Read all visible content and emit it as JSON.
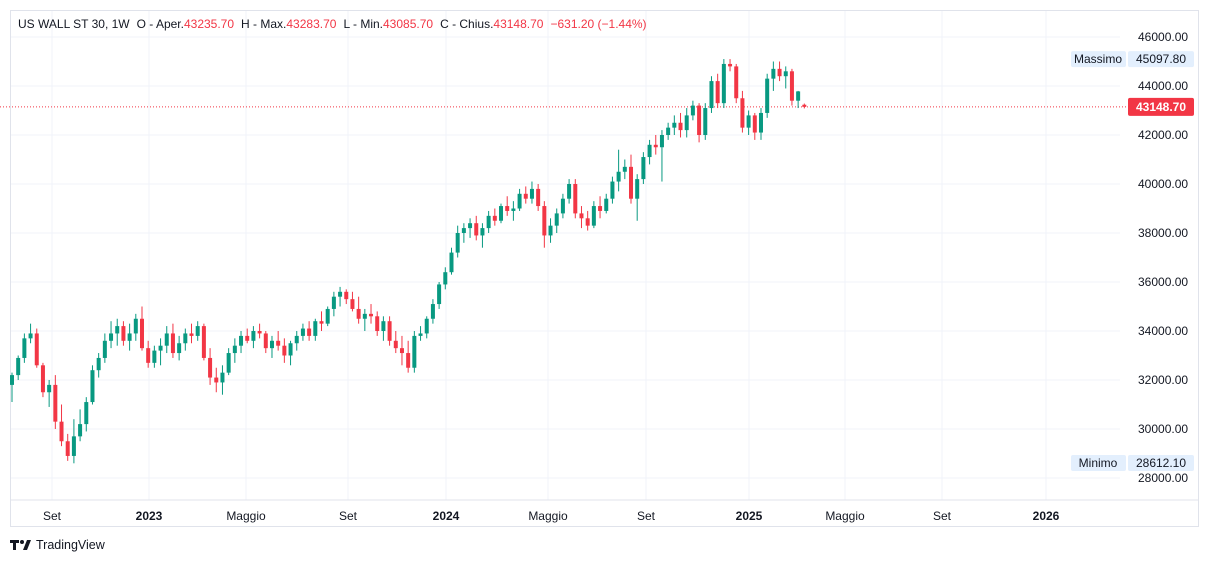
{
  "legend": {
    "symbol": "US WALL ST 30",
    "interval": "1W",
    "open_label": "O - Aper.",
    "open": "43235.70",
    "high_label": "H - Max.",
    "high": "43283.70",
    "low_label": "L - Min.",
    "low": "43085.70",
    "close_label": "C - Chius.",
    "close": "43148.70",
    "change": "−631.20 (−1.44%)"
  },
  "footer": {
    "brand": "TradingView",
    "logo_icon": "tradingview-logo-icon"
  },
  "colors": {
    "up": "#089981",
    "down": "#f23645",
    "grid": "#f0f3fa",
    "label_bg": "#e3effd"
  },
  "chart_data": {
    "type": "candlestick",
    "title": "",
    "xlabel": "",
    "ylabel": "",
    "ylim": [
      27000,
      46500
    ],
    "y_ticks": [
      "46000.00",
      "44000.00",
      "42000.00",
      "40000.00",
      "38000.00",
      "36000.00",
      "34000.00",
      "32000.00",
      "30000.00",
      "28000.00"
    ],
    "x_ticks": [
      {
        "label": "Set",
        "bold": false
      },
      {
        "label": "2023",
        "bold": true
      },
      {
        "label": "Maggio",
        "bold": false
      },
      {
        "label": "Set",
        "bold": false
      },
      {
        "label": "2024",
        "bold": true
      },
      {
        "label": "Maggio",
        "bold": false
      },
      {
        "label": "Set",
        "bold": false
      },
      {
        "label": "2025",
        "bold": true
      },
      {
        "label": "Maggio",
        "bold": false
      },
      {
        "label": "Set",
        "bold": false
      },
      {
        "label": "2026",
        "bold": true
      }
    ],
    "current_price": {
      "value": 43148.7,
      "label": "43148.70"
    },
    "max_marker": {
      "name": "Massimo",
      "value": 45097.8,
      "label": "45097.80"
    },
    "min_marker": {
      "name": "Minimo",
      "value": 28612.1,
      "label": "28612.10"
    },
    "grid": true,
    "candles": [
      [
        31800,
        32300,
        31100,
        32200
      ],
      [
        32200,
        33000,
        32000,
        32900
      ],
      [
        32900,
        33900,
        32700,
        33700
      ],
      [
        33700,
        34300,
        33500,
        33900
      ],
      [
        33900,
        34100,
        32500,
        32600
      ],
      [
        32600,
        32700,
        31300,
        31500
      ],
      [
        31500,
        32000,
        30900,
        31800
      ],
      [
        31800,
        32200,
        30000,
        30300
      ],
      [
        30300,
        31000,
        29300,
        29500
      ],
      [
        29500,
        29800,
        28700,
        28900
      ],
      [
        28900,
        30400,
        28600,
        29700
      ],
      [
        29700,
        30800,
        29500,
        30200
      ],
      [
        30200,
        31300,
        29900,
        31100
      ],
      [
        31100,
        32600,
        31000,
        32400
      ],
      [
        32400,
        33100,
        32100,
        32900
      ],
      [
        32900,
        33900,
        32700,
        33600
      ],
      [
        33600,
        34400,
        33300,
        33900
      ],
      [
        33900,
        34500,
        33400,
        34200
      ],
      [
        34200,
        34400,
        33400,
        33600
      ],
      [
        33600,
        34300,
        33200,
        33900
      ],
      [
        33900,
        34700,
        33600,
        34500
      ],
      [
        34500,
        35000,
        33200,
        33300
      ],
      [
        33300,
        33600,
        32500,
        32700
      ],
      [
        32700,
        33400,
        32500,
        33200
      ],
      [
        33200,
        33700,
        32600,
        33400
      ],
      [
        33400,
        34200,
        33100,
        33900
      ],
      [
        33900,
        34300,
        32900,
        33100
      ],
      [
        33100,
        33800,
        32800,
        33500
      ],
      [
        33500,
        34100,
        33200,
        33900
      ],
      [
        33900,
        34300,
        33500,
        33800
      ],
      [
        33800,
        34400,
        33600,
        34200
      ],
      [
        34200,
        34300,
        32800,
        32900
      ],
      [
        32900,
        33300,
        31800,
        32100
      ],
      [
        32100,
        32500,
        31500,
        31900
      ],
      [
        31900,
        32600,
        31400,
        32300
      ],
      [
        32300,
        33300,
        32200,
        33100
      ],
      [
        33100,
        33700,
        32700,
        33400
      ],
      [
        33400,
        34000,
        33100,
        33800
      ],
      [
        33800,
        34100,
        33500,
        33600
      ],
      [
        33600,
        34200,
        33300,
        34000
      ],
      [
        34000,
        34300,
        33700,
        33900
      ],
      [
        33900,
        34000,
        33100,
        33300
      ],
      [
        33300,
        33800,
        32900,
        33600
      ],
      [
        33600,
        34000,
        33200,
        33400
      ],
      [
        33400,
        33700,
        32700,
        33000
      ],
      [
        33000,
        33600,
        32600,
        33500
      ],
      [
        33500,
        34000,
        33200,
        33800
      ],
      [
        33800,
        34300,
        33600,
        34100
      ],
      [
        34100,
        34400,
        33600,
        33800
      ],
      [
        33800,
        34500,
        33600,
        34400
      ],
      [
        34400,
        34800,
        34000,
        34300
      ],
      [
        34300,
        35000,
        34200,
        34900
      ],
      [
        34900,
        35600,
        34600,
        35400
      ],
      [
        35400,
        35800,
        35000,
        35600
      ],
      [
        35600,
        35700,
        35100,
        35300
      ],
      [
        35300,
        35600,
        34800,
        34900
      ],
      [
        34900,
        35400,
        34300,
        34500
      ],
      [
        34500,
        34900,
        34000,
        34700
      ],
      [
        34700,
        35100,
        34300,
        34600
      ],
      [
        34600,
        34800,
        33800,
        34000
      ],
      [
        34000,
        34600,
        33600,
        34400
      ],
      [
        34400,
        34600,
        33400,
        33600
      ],
      [
        33600,
        34000,
        33100,
        33300
      ],
      [
        33300,
        33800,
        32600,
        33100
      ],
      [
        33100,
        33600,
        32300,
        32500
      ],
      [
        32500,
        34000,
        32300,
        33800
      ],
      [
        33800,
        34200,
        33600,
        33900
      ],
      [
        33900,
        34600,
        33700,
        34500
      ],
      [
        34500,
        35300,
        34300,
        35100
      ],
      [
        35100,
        36000,
        34900,
        35900
      ],
      [
        35900,
        36600,
        35700,
        36400
      ],
      [
        36400,
        37400,
        36300,
        37200
      ],
      [
        37200,
        38300,
        37000,
        38000
      ],
      [
        38000,
        38400,
        37600,
        38200
      ],
      [
        38200,
        38600,
        37800,
        38400
      ],
      [
        38400,
        38700,
        37700,
        37900
      ],
      [
        37900,
        38400,
        37400,
        38200
      ],
      [
        38200,
        38900,
        38000,
        38700
      ],
      [
        38700,
        39000,
        38300,
        38500
      ],
      [
        38500,
        39200,
        38400,
        39100
      ],
      [
        39100,
        39500,
        38700,
        38900
      ],
      [
        38900,
        39300,
        38500,
        39000
      ],
      [
        39000,
        39800,
        38900,
        39600
      ],
      [
        39600,
        39900,
        39200,
        39400
      ],
      [
        39400,
        40100,
        39200,
        39800
      ],
      [
        39800,
        40000,
        38900,
        39100
      ],
      [
        39100,
        39300,
        37400,
        37900
      ],
      [
        37900,
        38600,
        37600,
        38300
      ],
      [
        38300,
        39000,
        38000,
        38800
      ],
      [
        38800,
        39600,
        38600,
        39400
      ],
      [
        39400,
        40200,
        39200,
        40000
      ],
      [
        40000,
        40200,
        38600,
        38800
      ],
      [
        38800,
        39100,
        38200,
        38600
      ],
      [
        38600,
        38900,
        38100,
        38300
      ],
      [
        38300,
        39300,
        38200,
        39100
      ],
      [
        39100,
        39500,
        38600,
        38900
      ],
      [
        38900,
        39600,
        38800,
        39400
      ],
      [
        39400,
        40300,
        39200,
        40100
      ],
      [
        40100,
        41400,
        39700,
        40500
      ],
      [
        40500,
        41000,
        40200,
        40700
      ],
      [
        40700,
        41200,
        39200,
        39400
      ],
      [
        39400,
        40400,
        38500,
        40200
      ],
      [
        40200,
        41300,
        40000,
        41100
      ],
      [
        41100,
        41800,
        40800,
        41600
      ],
      [
        41600,
        42000,
        41200,
        41500
      ],
      [
        41500,
        42200,
        40100,
        42000
      ],
      [
        42000,
        42500,
        41800,
        42300
      ],
      [
        42300,
        42800,
        42000,
        42500
      ],
      [
        42500,
        42900,
        41900,
        42200
      ],
      [
        42200,
        43100,
        41900,
        42800
      ],
      [
        42800,
        43400,
        42600,
        43200
      ],
      [
        43200,
        43300,
        41700,
        42000
      ],
      [
        42000,
        43300,
        41800,
        43100
      ],
      [
        43100,
        44400,
        42900,
        44200
      ],
      [
        44200,
        44500,
        43100,
        43300
      ],
      [
        43300,
        45100,
        43100,
        44900
      ],
      [
        44900,
        45097.8,
        44600,
        44800
      ],
      [
        44800,
        44900,
        43300,
        43500
      ],
      [
        43500,
        43800,
        42100,
        42300
      ],
      [
        42300,
        43000,
        42000,
        42800
      ],
      [
        42800,
        42900,
        41800,
        42100
      ],
      [
        42100,
        43100,
        41800,
        42900
      ],
      [
        42900,
        44500,
        42700,
        44300
      ],
      [
        44300,
        45000,
        43800,
        44700
      ],
      [
        44700,
        45000,
        44200,
        44400
      ],
      [
        44400,
        44800,
        43900,
        44600
      ],
      [
        44600,
        44700,
        43200,
        43400
      ],
      [
        43400,
        43800,
        43100,
        43779.9
      ],
      [
        43235.7,
        43283.7,
        43085.7,
        43148.7
      ]
    ]
  }
}
